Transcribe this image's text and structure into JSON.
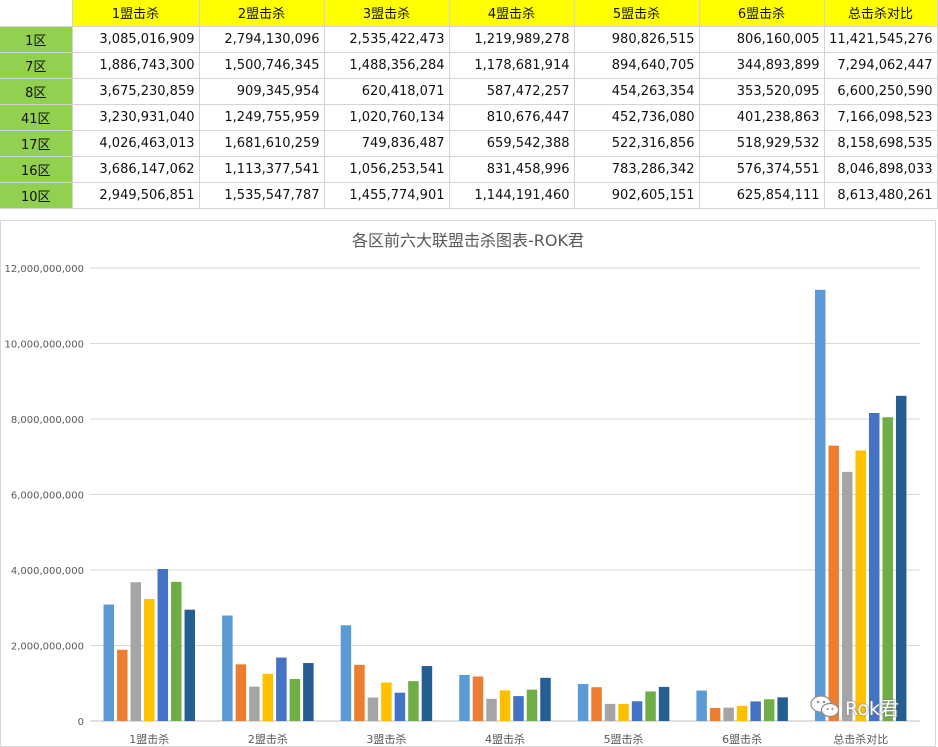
{
  "sheet": {
    "headers": [
      "1盟击杀",
      "2盟击杀",
      "3盟击杀",
      "4盟击杀",
      "5盟击杀",
      "6盟击杀",
      "总击杀对比"
    ],
    "rows": [
      {
        "label": "1区",
        "values": [
          "3,085,016,909",
          "2,794,130,096",
          "2,535,422,473",
          "1,219,989,278",
          "980,826,515",
          "806,160,005",
          "11,421,545,276"
        ]
      },
      {
        "label": "7区",
        "values": [
          "1,886,743,300",
          "1,500,746,345",
          "1,488,356,284",
          "1,178,681,914",
          "894,640,705",
          "344,893,899",
          "7,294,062,447"
        ]
      },
      {
        "label": "8区",
        "values": [
          "3,675,230,859",
          "909,345,954",
          "620,418,071",
          "587,472,257",
          "454,263,354",
          "353,520,095",
          "6,600,250,590"
        ]
      },
      {
        "label": "41区",
        "values": [
          "3,230,931,040",
          "1,249,755,959",
          "1,020,760,134",
          "810,676,447",
          "452,736,080",
          "401,238,863",
          "7,166,098,523"
        ]
      },
      {
        "label": "17区",
        "values": [
          "4,026,463,013",
          "1,681,610,259",
          "749,836,487",
          "659,542,388",
          "522,316,856",
          "518,929,532",
          "8,158,698,535"
        ]
      },
      {
        "label": "16区",
        "values": [
          "3,686,147,062",
          "1,113,377,541",
          "1,056,253,541",
          "831,458,996",
          "783,286,342",
          "576,374,551",
          "8,046,898,033"
        ]
      },
      {
        "label": "10区",
        "values": [
          "2,949,506,851",
          "1,535,547,787",
          "1,455,774,901",
          "1,144,191,460",
          "902,605,151",
          "625,854,111",
          "8,613,480,261"
        ]
      }
    ]
  },
  "chart_data": {
    "type": "bar",
    "title": "各区前六大联盟击杀图表-ROK君",
    "categories": [
      "1盟击杀",
      "2盟击杀",
      "3盟击杀",
      "4盟击杀",
      "5盟击杀",
      "6盟击杀",
      "总击杀对比"
    ],
    "ylim": [
      0,
      12000000000
    ],
    "yticks": [
      0,
      2000000000,
      4000000000,
      6000000000,
      8000000000,
      10000000000,
      12000000000
    ],
    "ytick_labels": [
      "0",
      "2,000,000,000",
      "4,000,000,000",
      "6,000,000,000",
      "8,000,000,000",
      "10,000,000,000",
      "12,000,000,000"
    ],
    "grid": true,
    "legend": "none",
    "series": [
      {
        "values": [
          3085016909,
          2794130096,
          2535422473,
          1219989278,
          980826515,
          806160005,
          11421545276
        ],
        "color": "#5b9bd5"
      },
      {
        "values": [
          1886743300,
          1500746345,
          1488356284,
          1178681914,
          894640705,
          344893899,
          7294062447
        ],
        "color": "#ed7d31"
      },
      {
        "values": [
          3675230859,
          909345954,
          620418071,
          587472257,
          454263354,
          353520095,
          6600250590
        ],
        "color": "#a5a5a5"
      },
      {
        "values": [
          3230931040,
          1249755959,
          1020760134,
          810676447,
          452736080,
          401238863,
          7166098523
        ],
        "color": "#ffc000"
      },
      {
        "values": [
          4026463013,
          1681610259,
          749836487,
          659542388,
          522316856,
          518929532,
          8158698535
        ],
        "color": "#4472c4"
      },
      {
        "values": [
          3686147062,
          1113377541,
          1056253541,
          831458996,
          783286342,
          576374551,
          8046898033
        ],
        "color": "#70ad47"
      },
      {
        "values": [
          2949506851,
          1535547787,
          1455774901,
          1144191460,
          902605151,
          625854111,
          8613480261
        ],
        "color": "#255e91"
      }
    ]
  },
  "watermark": {
    "text": "Rok君",
    "icon": "wechat-icon"
  }
}
